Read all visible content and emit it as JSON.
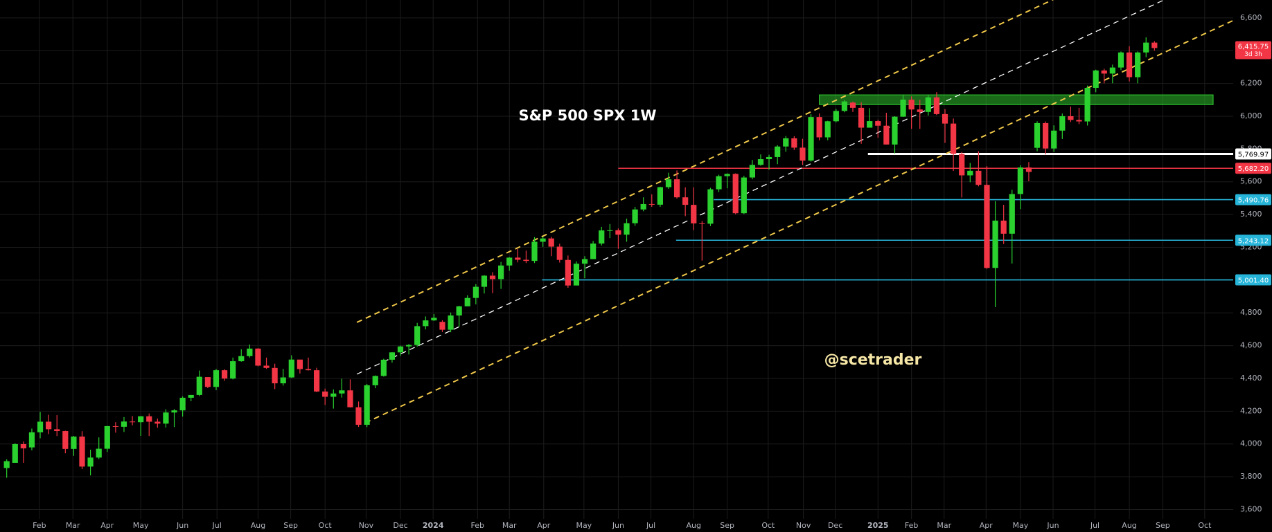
{
  "chart_data": {
    "type": "candlestick",
    "title": "S&P 500 SPX 1W",
    "watermark": "@scetrader",
    "up_color": "#2ad12f",
    "down_color": "#f23645",
    "grid": true,
    "xlim": [
      -0.8,
      146.4
    ],
    "ylim": [
      3543,
      6709
    ],
    "yticks": [
      {
        "value": 3600,
        "label": "3,600"
      },
      {
        "value": 3800,
        "label": "3,800"
      },
      {
        "value": 4000,
        "label": "4,000"
      },
      {
        "value": 4200,
        "label": "4,200"
      },
      {
        "value": 4400,
        "label": "4,400"
      },
      {
        "value": 4600,
        "label": "4,600"
      },
      {
        "value": 4800,
        "label": "4,800"
      },
      {
        "value": 5000,
        "label": "5,000"
      },
      {
        "value": 5200,
        "label": "5,200"
      },
      {
        "value": 5400,
        "label": "5,400"
      },
      {
        "value": 5600,
        "label": "5,600"
      },
      {
        "value": 5800,
        "label": "5,800"
      },
      {
        "value": 6000,
        "label": "6,000"
      },
      {
        "value": 6200,
        "label": "6,200"
      },
      {
        "value": 6400,
        "label": "6,400"
      },
      {
        "value": 6600,
        "label": "6,600"
      }
    ],
    "xticks": [
      {
        "value": 3.9,
        "label": "Feb"
      },
      {
        "value": 7.9,
        "label": "Mar"
      },
      {
        "value": 12.0,
        "label": "Apr"
      },
      {
        "value": 16.0,
        "label": "May"
      },
      {
        "value": 21.0,
        "label": "Jun"
      },
      {
        "value": 25.1,
        "label": "Jul"
      },
      {
        "value": 30.0,
        "label": "Aug"
      },
      {
        "value": 33.9,
        "label": "Sep"
      },
      {
        "value": 38.0,
        "label": "Oct"
      },
      {
        "value": 42.9,
        "label": "Nov"
      },
      {
        "value": 47.0,
        "label": "Dec"
      },
      {
        "value": 50.9,
        "label": "2024"
      },
      {
        "value": 56.2,
        "label": "Feb"
      },
      {
        "value": 60.0,
        "label": "Mar"
      },
      {
        "value": 64.1,
        "label": "Apr"
      },
      {
        "value": 68.9,
        "label": "May"
      },
      {
        "value": 73.0,
        "label": "Jun"
      },
      {
        "value": 76.9,
        "label": "Jul"
      },
      {
        "value": 82.0,
        "label": "Aug"
      },
      {
        "value": 86.0,
        "label": "Sep"
      },
      {
        "value": 90.9,
        "label": "Oct"
      },
      {
        "value": 95.1,
        "label": "Nov"
      },
      {
        "value": 98.9,
        "label": "Dec"
      },
      {
        "value": 104.0,
        "label": "2025"
      },
      {
        "value": 108.0,
        "label": "Feb"
      },
      {
        "value": 111.9,
        "label": "Mar"
      },
      {
        "value": 116.9,
        "label": "Apr"
      },
      {
        "value": 121.0,
        "label": "May"
      },
      {
        "value": 124.9,
        "label": "Jun"
      },
      {
        "value": 129.9,
        "label": "Jul"
      },
      {
        "value": 134.0,
        "label": "Aug"
      },
      {
        "value": 138.0,
        "label": "Sep"
      },
      {
        "value": 143.0,
        "label": "Oct"
      }
    ],
    "candles": [
      [
        3853,
        3906,
        3794,
        3895
      ],
      [
        3885,
        4004,
        3885,
        3999
      ],
      [
        3999,
        4015,
        3885,
        3973
      ],
      [
        3979,
        4094,
        3961,
        4071
      ],
      [
        4071,
        4195,
        4035,
        4136
      ],
      [
        4136,
        4178,
        4060,
        4090
      ],
      [
        4090,
        4176,
        4048,
        4079
      ],
      [
        4079,
        4081,
        3943,
        3970
      ],
      [
        3970,
        4049,
        3928,
        4045
      ],
      [
        4045,
        4078,
        3847,
        3862
      ],
      [
        3862,
        3965,
        3808,
        3917
      ],
      [
        3917,
        4040,
        3908,
        3971
      ],
      [
        3971,
        4110,
        3951,
        4109
      ],
      [
        4109,
        4133,
        4069,
        4105
      ],
      [
        4105,
        4164,
        4073,
        4137
      ],
      [
        4137,
        4170,
        4114,
        4133
      ],
      [
        4133,
        4170,
        4049,
        4169
      ],
      [
        4169,
        4186,
        4048,
        4136
      ],
      [
        4136,
        4155,
        4099,
        4124
      ],
      [
        4124,
        4212,
        4100,
        4192
      ],
      [
        4192,
        4213,
        4103,
        4205
      ],
      [
        4205,
        4290,
        4167,
        4282
      ],
      [
        4282,
        4299,
        4261,
        4299
      ],
      [
        4299,
        4448,
        4292,
        4410
      ],
      [
        4408,
        4408,
        4341,
        4348
      ],
      [
        4348,
        4458,
        4328,
        4450
      ],
      [
        4450,
        4456,
        4385,
        4399
      ],
      [
        4399,
        4527,
        4394,
        4505
      ],
      [
        4505,
        4578,
        4502,
        4536
      ],
      [
        4536,
        4607,
        4527,
        4582
      ],
      [
        4582,
        4585,
        4474,
        4478
      ],
      [
        4478,
        4527,
        4458,
        4464
      ],
      [
        4464,
        4490,
        4335,
        4370
      ],
      [
        4370,
        4458,
        4356,
        4406
      ],
      [
        4406,
        4541,
        4403,
        4515
      ],
      [
        4515,
        4514,
        4430,
        4457
      ],
      [
        4457,
        4527,
        4448,
        4450
      ],
      [
        4450,
        4465,
        4316,
        4320
      ],
      [
        4320,
        4338,
        4238,
        4288
      ],
      [
        4288,
        4333,
        4216,
        4308
      ],
      [
        4308,
        4398,
        4283,
        4327
      ],
      [
        4327,
        4394,
        4223,
        4224
      ],
      [
        4224,
        4259,
        4104,
        4117
      ],
      [
        4117,
        4366,
        4103,
        4358
      ],
      [
        4358,
        4418,
        4340,
        4415
      ],
      [
        4415,
        4520,
        4411,
        4514
      ],
      [
        4514,
        4560,
        4496,
        4559
      ],
      [
        4559,
        4600,
        4537,
        4595
      ],
      [
        4595,
        4610,
        4546,
        4604
      ],
      [
        4604,
        4739,
        4594,
        4719
      ],
      [
        4719,
        4778,
        4699,
        4754
      ],
      [
        4754,
        4793,
        4751,
        4770
      ],
      [
        4745,
        4755,
        4683,
        4697
      ],
      [
        4697,
        4802,
        4682,
        4784
      ],
      [
        4784,
        4843,
        4714,
        4840
      ],
      [
        4840,
        4907,
        4845,
        4891
      ],
      [
        4891,
        4976,
        4852,
        4959
      ],
      [
        4959,
        5030,
        4918,
        5027
      ],
      [
        5027,
        5048,
        4920,
        5006
      ],
      [
        5006,
        5111,
        4946,
        5089
      ],
      [
        5089,
        5140,
        5057,
        5137
      ],
      [
        5137,
        5190,
        5108,
        5124
      ],
      [
        5124,
        5180,
        5104,
        5117
      ],
      [
        5117,
        5262,
        5104,
        5234
      ],
      [
        5234,
        5265,
        5203,
        5254
      ],
      [
        5254,
        5264,
        5146,
        5204
      ],
      [
        5204,
        5222,
        5107,
        5123
      ],
      [
        5123,
        5150,
        4953,
        4967
      ],
      [
        4967,
        5114,
        4968,
        5100
      ],
      [
        5100,
        5146,
        5011,
        5128
      ],
      [
        5128,
        5239,
        5128,
        5223
      ],
      [
        5223,
        5325,
        5211,
        5303
      ],
      [
        5303,
        5342,
        5256,
        5304
      ],
      [
        5304,
        5315,
        5191,
        5277
      ],
      [
        5277,
        5375,
        5234,
        5347
      ],
      [
        5347,
        5447,
        5331,
        5431
      ],
      [
        5431,
        5505,
        5420,
        5464
      ],
      [
        5464,
        5523,
        5447,
        5460
      ],
      [
        5460,
        5570,
        5447,
        5567
      ],
      [
        5567,
        5655,
        5557,
        5615
      ],
      [
        5615,
        5669,
        5497,
        5505
      ],
      [
        5505,
        5566,
        5390,
        5459
      ],
      [
        5459,
        5566,
        5305,
        5346
      ],
      [
        5346,
        5360,
        5119,
        5344
      ],
      [
        5344,
        5563,
        5330,
        5554
      ],
      [
        5554,
        5643,
        5537,
        5634
      ],
      [
        5634,
        5651,
        5560,
        5648
      ],
      [
        5648,
        5651,
        5402,
        5408
      ],
      [
        5408,
        5636,
        5403,
        5626
      ],
      [
        5626,
        5733,
        5615,
        5703
      ],
      [
        5703,
        5767,
        5698,
        5738
      ],
      [
        5738,
        5765,
        5674,
        5751
      ],
      [
        5751,
        5823,
        5707,
        5815
      ],
      [
        5815,
        5879,
        5783,
        5865
      ],
      [
        5865,
        5878,
        5794,
        5808
      ],
      [
        5808,
        5862,
        5702,
        5729
      ],
      [
        5729,
        6012,
        5723,
        5995
      ],
      [
        5995,
        6017,
        5853,
        5871
      ],
      [
        5871,
        5972,
        5853,
        5969
      ],
      [
        5969,
        6044,
        5963,
        6032
      ],
      [
        6032,
        6099,
        6024,
        6090
      ],
      [
        6083,
        6089,
        6026,
        6051
      ],
      [
        6051,
        6085,
        5832,
        5930
      ],
      [
        5930,
        6049,
        5933,
        5970
      ],
      [
        5970,
        5979,
        5869,
        5942
      ],
      [
        5942,
        6021,
        5828,
        5827
      ],
      [
        5827,
        6000,
        5773,
        5997
      ],
      [
        5997,
        6128,
        5996,
        6101
      ],
      [
        6101,
        6121,
        5923,
        6041
      ],
      [
        6041,
        6101,
        5923,
        6026
      ],
      [
        6026,
        6127,
        6004,
        6115
      ],
      [
        6115,
        6147,
        6007,
        6013
      ],
      [
        6013,
        6043,
        5837,
        5955
      ],
      [
        5955,
        5986,
        5666,
        5770
      ],
      [
        5770,
        5782,
        5504,
        5639
      ],
      [
        5639,
        5715,
        5597,
        5667
      ],
      [
        5667,
        5786,
        5572,
        5581
      ],
      [
        5581,
        5695,
        5069,
        5074
      ],
      [
        5074,
        5481,
        4835,
        5363
      ],
      [
        5363,
        5459,
        5220,
        5283
      ],
      [
        5283,
        5551,
        5101,
        5525
      ],
      [
        5525,
        5700,
        5433,
        5687
      ],
      [
        5687,
        5720,
        5603,
        5660
      ],
      [
        5807,
        5969,
        5786,
        5958
      ],
      [
        5958,
        5968,
        5767,
        5803
      ],
      [
        5803,
        5944,
        5782,
        5912
      ],
      [
        5912,
        6016,
        5861,
        6000
      ],
      [
        6000,
        6059,
        5964,
        5977
      ],
      [
        5977,
        6051,
        5952,
        5968
      ],
      [
        5968,
        6187,
        5943,
        6173
      ],
      [
        6173,
        6284,
        6146,
        6279
      ],
      [
        6279,
        6290,
        6201,
        6260
      ],
      [
        6260,
        6315,
        6201,
        6297
      ],
      [
        6297,
        6395,
        6281,
        6389
      ],
      [
        6389,
        6427,
        6212,
        6238
      ],
      [
        6238,
        6395,
        6201,
        6389
      ],
      [
        6389,
        6481,
        6360,
        6449
      ],
      [
        6449,
        6458,
        6400,
        6416
      ]
    ],
    "last_price": {
      "value": 6415.75,
      "label": "6,415.75",
      "countdown": "3d 3h",
      "color": "#f23645"
    },
    "levels": [
      {
        "value": 5769.97,
        "label": "5,769.97",
        "color": "#ffffff",
        "start": 102.8
      },
      {
        "value": 5682.2,
        "label": "5,682.20",
        "color": "#f23645",
        "start": 73.0
      },
      {
        "value": 5490.76,
        "label": "5,490.76",
        "color": "#26b5d9",
        "start": 84.4
      },
      {
        "value": 5243.12,
        "label": "5,243.12",
        "color": "#26b5d9",
        "start": 79.9
      },
      {
        "value": 5001.4,
        "label": "5,001.40",
        "color": "#26b5d9",
        "start": 63.9
      }
    ],
    "zone": {
      "x": [
        97,
        144
      ],
      "y": [
        6071,
        6130
      ],
      "color": "#2dbf2d"
    },
    "trendlines": [
      {
        "color": "#f0c84a",
        "points": [
          [
            41.8,
            4742
          ],
          [
            146.4,
            7221
          ]
        ]
      },
      {
        "color": "#ffffff",
        "points": [
          [
            41.8,
            4426
          ],
          [
            146.4,
            6905
          ]
        ]
      },
      {
        "color": "#f0c84a",
        "points": [
          [
            42.8,
            4129
          ],
          [
            146.4,
            6584
          ]
        ]
      }
    ]
  }
}
